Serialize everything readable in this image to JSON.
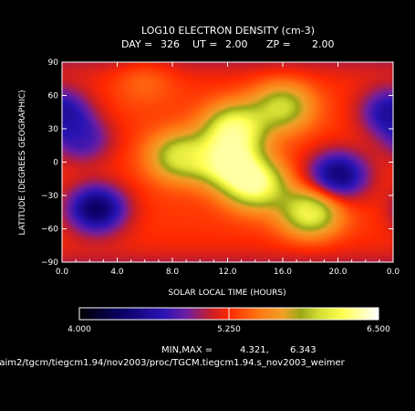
{
  "chart_data": {
    "type": "heatmap",
    "title": "LOG10 ELECTRON DENSITY (cm-3)",
    "subtitle_items": [
      {
        "label": "DAY =",
        "value": "326"
      },
      {
        "label": "UT =",
        "value": "2.00"
      },
      {
        "label": "ZP =",
        "value": "2.00"
      }
    ],
    "xlabel": "SOLAR LOCAL TIME (HOURS)",
    "ylabel": "LATITUDE (DEGREES GEOGRAPHIC)",
    "x_tick_labels": [
      "0.0",
      "4.0",
      "8.0",
      "12.0",
      "16.0",
      "20.0",
      "0.0"
    ],
    "xlim": [
      0,
      24
    ],
    "y_tick_values": [
      -90,
      -60,
      -30,
      0,
      30,
      60,
      90
    ],
    "y_tick_labels": [
      "−90",
      "−60",
      "−30",
      "0",
      "30",
      "60",
      "90"
    ],
    "ylim": [
      -90,
      90
    ],
    "colorbar": {
      "min": 4.0,
      "max": 6.5,
      "tick_labels": [
        "4.000",
        "5.250",
        "6.500"
      ],
      "tick_values": [
        4.0,
        5.25,
        6.5
      ],
      "stops": [
        {
          "value": 4.0,
          "color": "#000000"
        },
        {
          "value": 4.35,
          "color": "#0a0064"
        },
        {
          "value": 4.7,
          "color": "#2a14b4"
        },
        {
          "value": 4.9,
          "color": "#6e1ea0"
        },
        {
          "value": 5.1,
          "color": "#c81e28"
        },
        {
          "value": 5.25,
          "color": "#ff2800"
        },
        {
          "value": 5.5,
          "color": "#ff7814"
        },
        {
          "value": 5.7,
          "color": "#f0a028"
        },
        {
          "value": 5.85,
          "color": "#9ca818"
        },
        {
          "value": 6.0,
          "color": "#d2dc32"
        },
        {
          "value": 6.2,
          "color": "#ffff50"
        },
        {
          "value": 6.5,
          "color": "#ffffff"
        }
      ]
    },
    "min_max_label": "MIN,MAX =",
    "min_value": "4.321,",
    "max_value": "6.343",
    "data_range": [
      4.321,
      6.343
    ],
    "features": [
      {
        "x": 12.0,
        "y": 0.0,
        "value": 6.3
      },
      {
        "x": 14.0,
        "y": -20.0,
        "value": 6.3
      },
      {
        "x": 12.5,
        "y": 30.0,
        "value": 6.25
      },
      {
        "x": 16.0,
        "y": 50.0,
        "value": 6.0
      },
      {
        "x": 8.5,
        "y": 5.0,
        "value": 6.05
      },
      {
        "x": 18.0,
        "y": -45.0,
        "value": 6.2
      },
      {
        "x": 2.5,
        "y": -42.0,
        "value": 4.35
      },
      {
        "x": 1.5,
        "y": 20.0,
        "value": 4.8
      },
      {
        "x": 20.0,
        "y": -12.0,
        "value": 4.4
      },
      {
        "x": 23.8,
        "y": 45.0,
        "value": 4.6
      },
      {
        "x": 6.0,
        "y": 75.0,
        "value": 5.5
      },
      {
        "x": 4.5,
        "y": -80.0,
        "value": 5.3
      }
    ]
  },
  "footer_path": "/aim2/tgcm/tiegcm1.94/nov2003/proc/TGCM.tiegcm1.94.s_nov2003_weimer"
}
